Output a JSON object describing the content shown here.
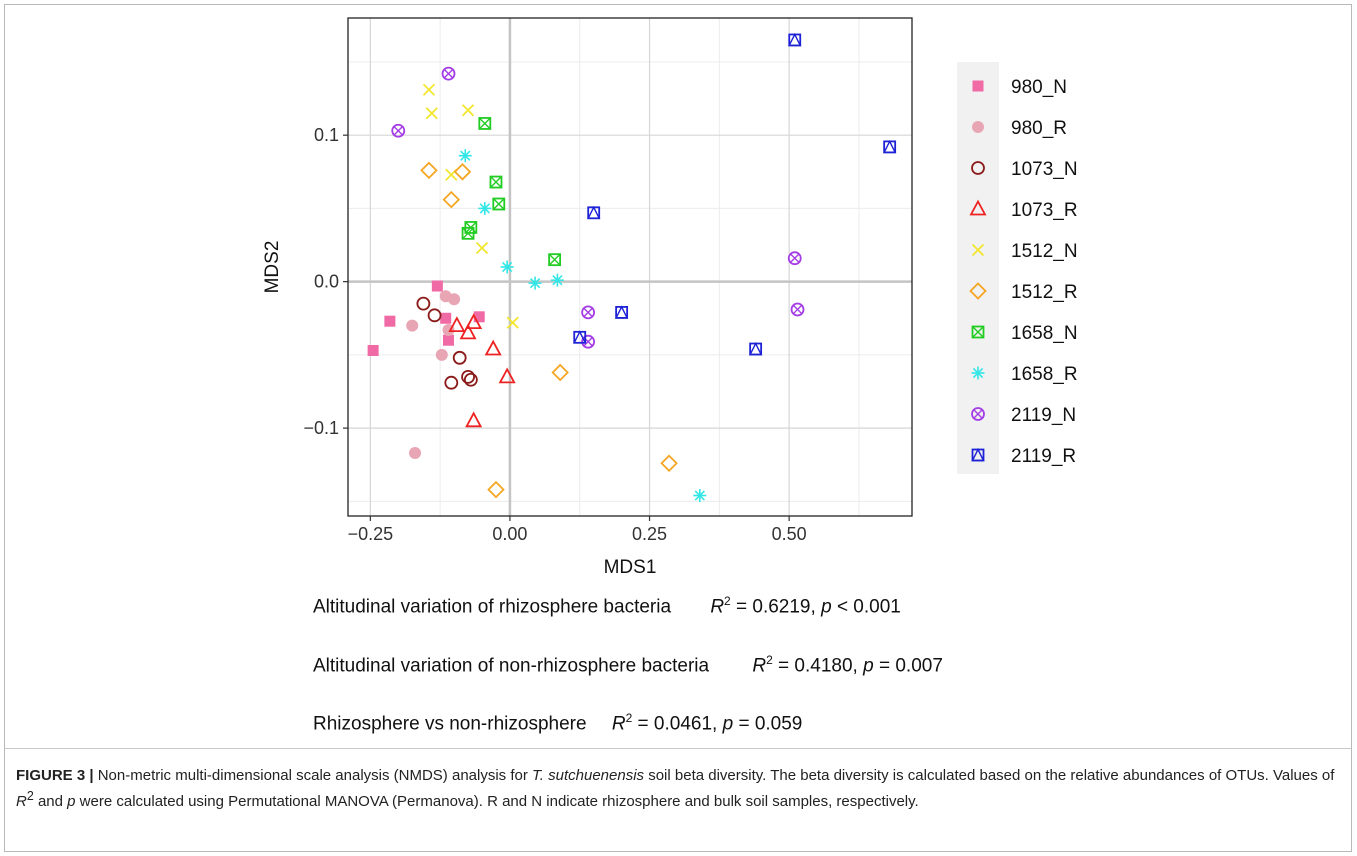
{
  "stats": {
    "line1": {
      "label": "Altitudinal variation of rhizosphere bacteria",
      "r2": "0.6219",
      "p_text": "< 0.001"
    },
    "line2": {
      "label": "Altitudinal variation of non-rhizosphere bacteria",
      "r2": "0.4180",
      "p_text": "= 0.007"
    },
    "line3": {
      "label": "Rhizosphere vs non-rhizosphere",
      "r2": "0.0461",
      "p_text": "= 0.059"
    }
  },
  "caption": {
    "label": "FIGURE 3 |",
    "text_a": " Non-metric multi-dimensional scale analysis (NMDS) analysis for ",
    "species": "T. sutchuenensis",
    "text_b": " soil beta diversity. The beta diversity is calculated based on the relative abundances of OTUs. Values of ",
    "r": "R",
    "text_c": " and ",
    "p": "p",
    "text_d": " were calculated using Permutational MANOVA (Permanova). R and N indicate rhizosphere and bulk soil samples, respectively."
  },
  "chart_data": {
    "type": "scatter",
    "xlabel": "MDS1",
    "ylabel": "MDS2",
    "xlim": [
      -0.29,
      0.72
    ],
    "ylim": [
      -0.16,
      0.18
    ],
    "xticks": [
      -0.25,
      0.0,
      0.25,
      0.5
    ],
    "xtick_labels": [
      "−0.25",
      "0.00",
      "0.25",
      "0.50"
    ],
    "yticks": [
      -0.1,
      0.0,
      0.1
    ],
    "ytick_labels": [
      "−0.1",
      "0.0",
      "0.1"
    ],
    "grid": true,
    "zero_lines": true,
    "legend_position": "right",
    "series": [
      {
        "name": "980_N",
        "marker": "square",
        "color": "#f06aa6",
        "x": [
          -0.245,
          -0.215,
          -0.13,
          -0.115,
          -0.11,
          -0.055
        ],
        "y": [
          -0.047,
          -0.027,
          -0.003,
          -0.025,
          -0.04,
          -0.024
        ]
      },
      {
        "name": "980_R",
        "marker": "circle",
        "color": "#e8a6b4",
        "x": [
          -0.175,
          -0.115,
          -0.1,
          -0.11,
          -0.122,
          -0.17
        ],
        "y": [
          -0.03,
          -0.01,
          -0.012,
          -0.033,
          -0.05,
          -0.117
        ]
      },
      {
        "name": "1073_N",
        "marker": "circle-open",
        "color": "#8b1a1a",
        "x": [
          -0.155,
          -0.135,
          -0.09,
          -0.075,
          -0.07,
          -0.105
        ],
        "y": [
          -0.015,
          -0.023,
          -0.052,
          -0.065,
          -0.067,
          -0.069
        ]
      },
      {
        "name": "1073_R",
        "marker": "triangle",
        "color": "#ee2222",
        "x": [
          -0.095,
          -0.075,
          -0.065,
          -0.03,
          -0.005,
          -0.065
        ],
        "y": [
          -0.03,
          -0.035,
          -0.028,
          -0.046,
          -0.065,
          -0.095
        ]
      },
      {
        "name": "1512_N",
        "marker": "x",
        "color": "#f2e62e",
        "x": [
          -0.145,
          -0.14,
          -0.075,
          -0.105,
          -0.05,
          0.005
        ],
        "y": [
          0.131,
          0.115,
          0.117,
          0.073,
          0.023,
          -0.028
        ]
      },
      {
        "name": "1512_R",
        "marker": "diamond",
        "color": "#f5a623",
        "x": [
          -0.145,
          -0.085,
          -0.105,
          0.09,
          0.285,
          -0.025
        ],
        "y": [
          0.076,
          0.075,
          0.056,
          -0.062,
          -0.124,
          -0.142
        ]
      },
      {
        "name": "1658_N",
        "marker": "square-x",
        "color": "#22cc22",
        "x": [
          -0.045,
          -0.025,
          -0.02,
          -0.07,
          -0.075,
          0.08
        ],
        "y": [
          0.108,
          0.068,
          0.053,
          0.037,
          0.033,
          0.015
        ]
      },
      {
        "name": "1658_R",
        "marker": "asterisk",
        "color": "#33e6e6",
        "x": [
          -0.08,
          -0.045,
          -0.005,
          0.045,
          0.085,
          0.34
        ],
        "y": [
          0.086,
          0.05,
          0.01,
          -0.001,
          0.001,
          -0.146
        ]
      },
      {
        "name": "2119_N",
        "marker": "circle-x",
        "color": "#a43de6",
        "x": [
          -0.11,
          -0.2,
          0.14,
          0.14,
          0.51,
          0.515
        ],
        "y": [
          0.142,
          0.103,
          -0.021,
          -0.041,
          0.016,
          -0.019
        ]
      },
      {
        "name": "2119_R",
        "marker": "square-triangle",
        "color": "#1e22d6",
        "x": [
          0.15,
          0.125,
          0.2,
          0.44,
          0.51,
          0.68
        ],
        "y": [
          0.047,
          -0.038,
          -0.021,
          -0.046,
          0.165,
          0.092
        ]
      }
    ]
  }
}
